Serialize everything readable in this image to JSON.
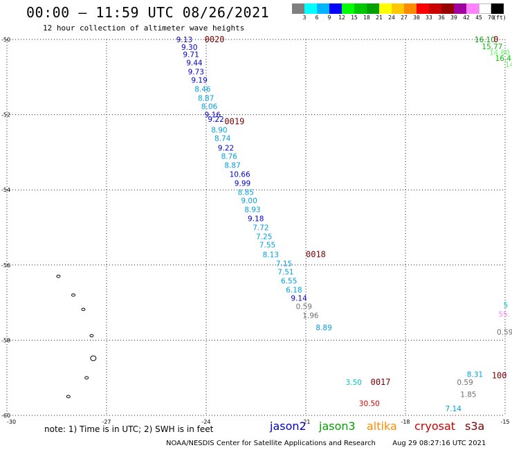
{
  "header": {
    "title": "00:00 – 11:59 UTC 08/26/2021",
    "subtitle": "12 hour collection of altimeter wave heights"
  },
  "colorbar": {
    "colors": [
      "#7f7f7f",
      "#00ffff",
      "#00b4ff",
      "#0000ff",
      "#00ff00",
      "#00c800",
      "#00a000",
      "#ffff00",
      "#ffc800",
      "#ff8c00",
      "#ff0000",
      "#c80000",
      "#960000",
      "#a000a0",
      "#ff82ff",
      "#ffffff",
      "#000000"
    ],
    "labels": [
      "3",
      "6",
      "9",
      "12",
      "15",
      "18",
      "21",
      "24",
      "27",
      "30",
      "33",
      "36",
      "39",
      "42",
      "45",
      "70",
      "(ft)"
    ]
  },
  "chart_data": {
    "type": "map",
    "x_axis": {
      "min": -30,
      "max": -15,
      "ticks": [
        -30,
        -27,
        -24,
        -21,
        -18,
        -15
      ],
      "tick_labels": [
        "-30",
        "-27",
        "-24",
        "-21",
        "-18",
        "-15"
      ]
    },
    "y_axis": {
      "min": -60,
      "max": -50,
      "ticks": [
        -50,
        -52,
        -54,
        -56,
        -58,
        -60
      ],
      "tick_labels": [
        "-50",
        "-52",
        "-54",
        "-56",
        "-58",
        "-60"
      ]
    },
    "grid": true,
    "wave_heights": [
      {
        "text": "9.13",
        "lon": -24.9,
        "lat": -50.0,
        "color": "#0000cc"
      },
      {
        "text": "9.30",
        "lon": -24.75,
        "lat": -50.2,
        "color": "#0000cc"
      },
      {
        "text": "9.71",
        "lon": -24.7,
        "lat": -50.4,
        "color": "#0000cc"
      },
      {
        "text": "9.44",
        "lon": -24.6,
        "lat": -50.62,
        "color": "#0000cc"
      },
      {
        "text": "9.73",
        "lon": -24.55,
        "lat": -50.86,
        "color": "#0000cc"
      },
      {
        "text": "9.19",
        "lon": -24.45,
        "lat": -51.08,
        "color": "#0000cc"
      },
      {
        "text": "8.46",
        "lon": -24.35,
        "lat": -51.32,
        "color": "#00a0e0"
      },
      {
        "text": "8.87",
        "lon": -24.25,
        "lat": -51.56,
        "color": "#00a0e0"
      },
      {
        "text": "8.06",
        "lon": -24.15,
        "lat": -51.78,
        "color": "#00a0e0"
      },
      {
        "text": "9.16",
        "lon": -24.05,
        "lat": -52.0,
        "color": "#0000cc"
      },
      {
        "text": "9.22",
        "lon": -23.95,
        "lat": -52.12,
        "color": "#0000cc"
      },
      {
        "text": "8.90",
        "lon": -23.85,
        "lat": -52.4,
        "color": "#00a0e0"
      },
      {
        "text": "8.74",
        "lon": -23.75,
        "lat": -52.62,
        "color": "#00a0e0"
      },
      {
        "text": "9.22",
        "lon": -23.65,
        "lat": -52.88,
        "color": "#0000cc"
      },
      {
        "text": "8.76",
        "lon": -23.55,
        "lat": -53.1,
        "color": "#00a0e0"
      },
      {
        "text": "8.87",
        "lon": -23.45,
        "lat": -53.34,
        "color": "#00a0e0"
      },
      {
        "text": "10.66",
        "lon": -23.3,
        "lat": -53.58,
        "color": "#0000cc"
      },
      {
        "text": "9.99",
        "lon": -23.15,
        "lat": -53.82,
        "color": "#0000cc"
      },
      {
        "text": "8.85",
        "lon": -23.05,
        "lat": -54.06,
        "color": "#00a0e0"
      },
      {
        "text": "9.00",
        "lon": -22.95,
        "lat": -54.28,
        "color": "#00a0e0"
      },
      {
        "text": "8.93",
        "lon": -22.85,
        "lat": -54.52,
        "color": "#00a0e0"
      },
      {
        "text": "9.18",
        "lon": -22.75,
        "lat": -54.76,
        "color": "#0000cc"
      },
      {
        "text": "7.72",
        "lon": -22.6,
        "lat": -55.0,
        "color": "#00a0e0"
      },
      {
        "text": "7.25",
        "lon": -22.5,
        "lat": -55.24,
        "color": "#00a0e0"
      },
      {
        "text": "7.55",
        "lon": -22.4,
        "lat": -55.46,
        "color": "#00a0e0"
      },
      {
        "text": "8.13",
        "lon": -22.3,
        "lat": -55.72,
        "color": "#00a0e0"
      },
      {
        "text": "7.15",
        "lon": -21.9,
        "lat": -55.96,
        "color": "#00a0e0"
      },
      {
        "text": "7.51",
        "lon": -21.85,
        "lat": -56.18,
        "color": "#00a0e0"
      },
      {
        "text": "6.55",
        "lon": -21.75,
        "lat": -56.42,
        "color": "#00a0e0"
      },
      {
        "text": "6.18",
        "lon": -21.6,
        "lat": -56.66,
        "color": "#00a0e0"
      },
      {
        "text": "9.14",
        "lon": -21.45,
        "lat": -56.88,
        "color": "#0000cc"
      },
      {
        "text": "0.59",
        "lon": -21.3,
        "lat": -57.1,
        "color": "#707070"
      },
      {
        "text": "1.96",
        "lon": -21.1,
        "lat": -57.34,
        "color": "#707070"
      },
      {
        "text": "8.89",
        "lon": -20.7,
        "lat": -57.66,
        "color": "#00a0e0"
      },
      {
        "text": "3.50",
        "lon": -19.8,
        "lat": -59.12,
        "color": "#00c8c8"
      },
      {
        "text": "30.50",
        "lon": -19.4,
        "lat": -59.68,
        "color": "#cc0000"
      },
      {
        "text": "7.14",
        "lon": -16.8,
        "lat": -59.82,
        "color": "#00a0e0"
      },
      {
        "text": "1.85",
        "lon": -16.35,
        "lat": -59.44,
        "color": "#707070"
      },
      {
        "text": "0.59",
        "lon": -16.45,
        "lat": -59.12,
        "color": "#707070"
      },
      {
        "text": "8.31",
        "lon": -16.15,
        "lat": -58.9,
        "color": "#00a0e0"
      },
      {
        "text": "0.59",
        "lon": -15.25,
        "lat": -57.78,
        "color": "#707070"
      },
      {
        "text": "55.",
        "lon": -15.2,
        "lat": -57.3,
        "color": "#ff82ff"
      },
      {
        "text": "5",
        "lon": -15.05,
        "lat": -57.06,
        "color": "#00c8c8"
      },
      {
        "text": "16.10",
        "lon": -15.92,
        "lat": -50.0,
        "color": "#00a000"
      },
      {
        "text": "15.77",
        "lon": -15.7,
        "lat": -50.18,
        "color": "#00c800"
      },
      {
        "text": "14.60",
        "lon": -15.48,
        "lat": -50.34,
        "color": "#66ff66"
      },
      {
        "text": "16.4",
        "lon": -15.3,
        "lat": -50.5,
        "color": "#00c800"
      },
      {
        "text": "14",
        "lon": -15.0,
        "lat": -50.66,
        "color": "#66ff66"
      }
    ],
    "time_labels": [
      {
        "text": "0020",
        "lon": -24.05,
        "lat": -50.0,
        "color": "#7a0000"
      },
      {
        "text": "0019",
        "lon": -23.45,
        "lat": -52.18,
        "color": "#7a0000"
      },
      {
        "text": "0018",
        "lon": -21.0,
        "lat": -55.72,
        "color": "#7a0000"
      },
      {
        "text": "0017",
        "lon": -19.05,
        "lat": -59.12,
        "color": "#7a0000"
      },
      {
        "text": "100",
        "lon": -15.4,
        "lat": -58.94,
        "color": "#7a0000"
      },
      {
        "text": "0",
        "lon": -15.35,
        "lat": -50.0,
        "color": "#006000"
      }
    ],
    "islands": [
      {
        "lon": -28.45,
        "lat": -56.3
      },
      {
        "lon": -28.0,
        "lat": -56.8
      },
      {
        "lon": -27.7,
        "lat": -57.18
      },
      {
        "lon": -27.45,
        "lat": -57.88
      },
      {
        "lon": -27.4,
        "lat": -58.48
      },
      {
        "lon": -27.6,
        "lat": -59.0
      },
      {
        "lon": -28.15,
        "lat": -59.5
      }
    ]
  },
  "note": "note: 1) Time is in UTC; 2) SWH is in feet",
  "legend": [
    {
      "name": "jason2",
      "color": "#0000cc"
    },
    {
      "name": "jason3",
      "color": "#00a000"
    },
    {
      "name": "altika",
      "color": "#ff8c00"
    },
    {
      "name": "cryosat",
      "color": "#cc0000"
    },
    {
      "name": "s3a",
      "color": "#7a0000"
    }
  ],
  "footer": {
    "credit": "NOAA/NESDIS Center for Satellite Applications and Research",
    "timestamp": "Aug 29 08:27:16 UTC 2021"
  }
}
